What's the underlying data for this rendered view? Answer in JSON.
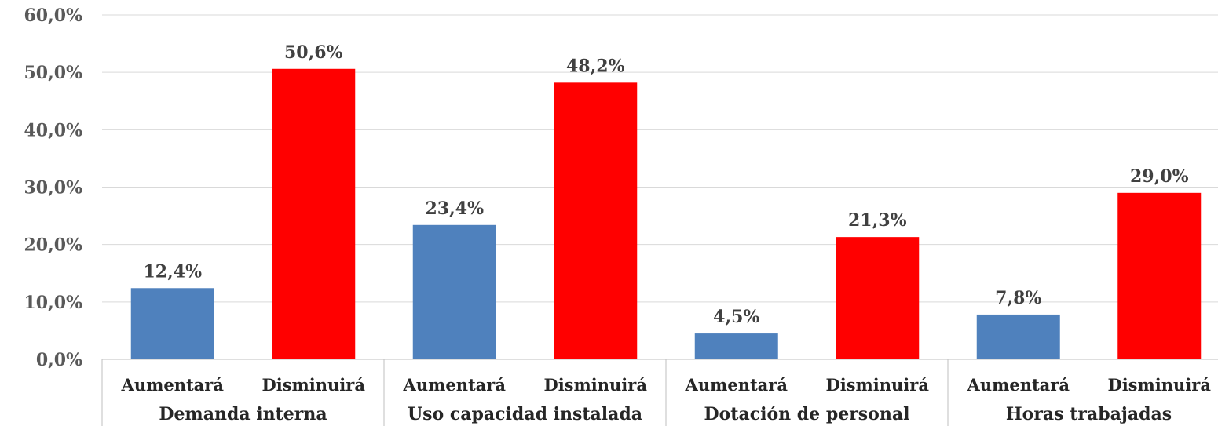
{
  "chart_data": {
    "type": "bar",
    "title": "",
    "xlabel": "",
    "ylabel": "",
    "ylim": [
      0,
      60
    ],
    "yticks": [
      "0,0%",
      "10,0%",
      "20,0%",
      "30,0%",
      "40,0%",
      "50,0%",
      "60,0%"
    ],
    "grid": true,
    "legend": "none",
    "groups": [
      "Demanda interna",
      "Uso capacidad instalada",
      "Dotación de personal",
      "Horas trabajadas"
    ],
    "categories": [
      "Aumentará",
      "Disminuirá",
      "Aumentará",
      "Disminuirá",
      "Aumentará",
      "Disminuirá",
      "Aumentará",
      "Disminuirá"
    ],
    "values": [
      12.4,
      50.6,
      23.4,
      48.2,
      4.5,
      21.3,
      7.8,
      29.0
    ],
    "value_labels": [
      "12,4%",
      "50,6%",
      "23,4%",
      "48,2%",
      "4,5%",
      "21,3%",
      "7,8%",
      "29,0%"
    ],
    "colors": {
      "Aumentará": "#4f81bd",
      "Disminuirá": "#ff0000"
    }
  }
}
